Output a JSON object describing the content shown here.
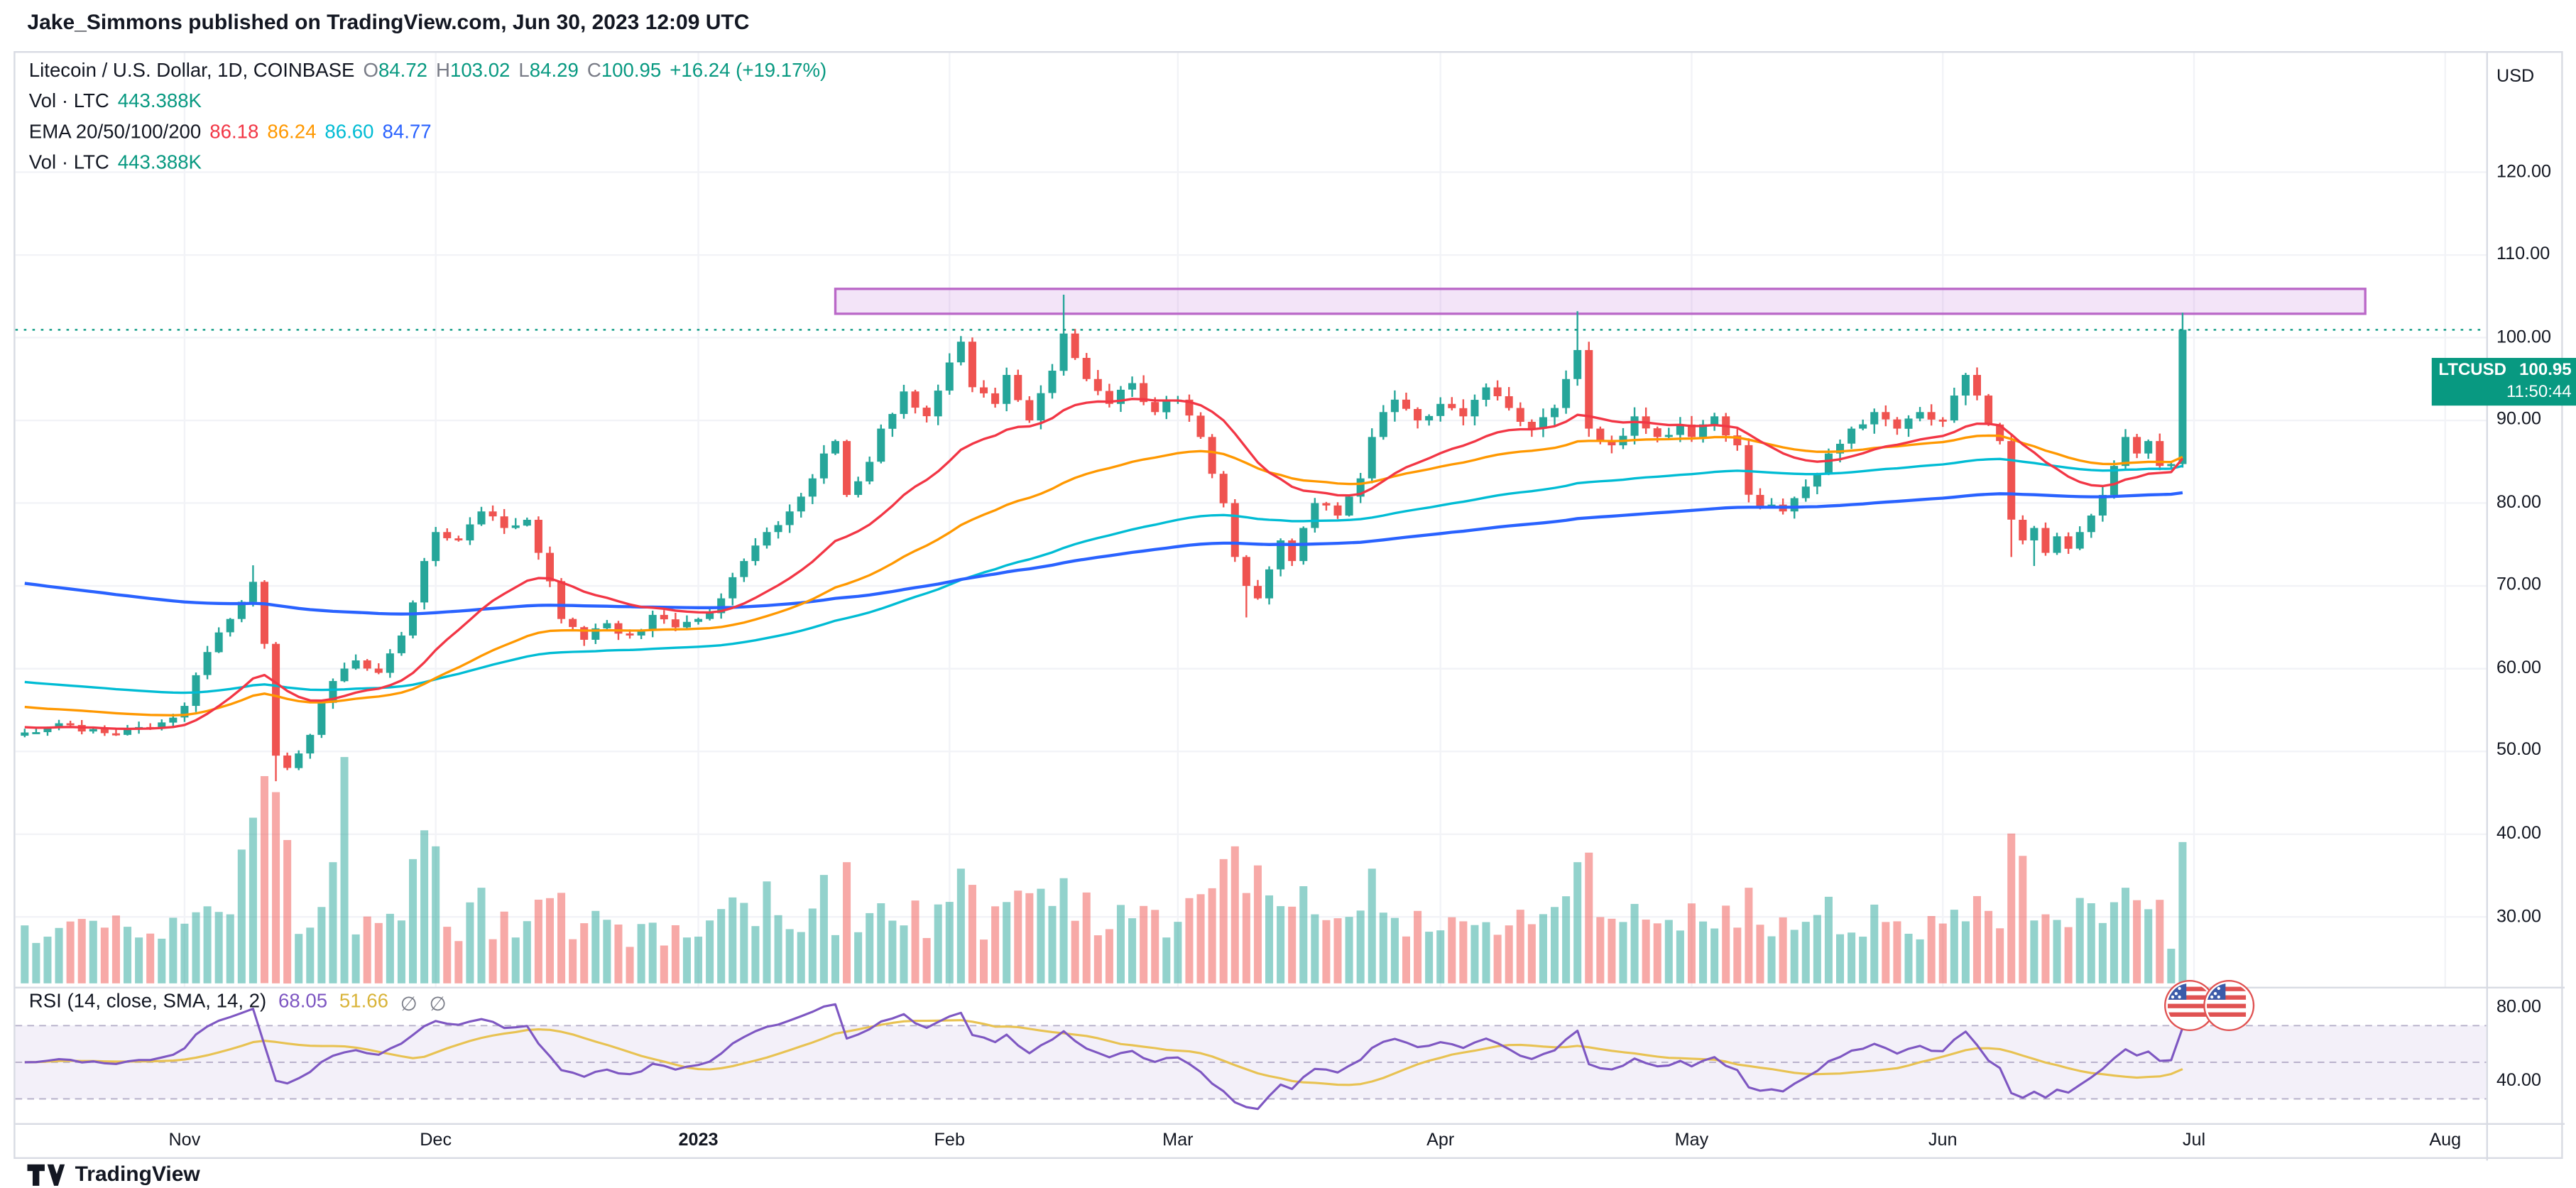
{
  "header": {
    "published_line": "Jake_Simmons published on TradingView.com, Jun 30, 2023 12:09 UTC"
  },
  "legend": {
    "symbol_row": {
      "title": "Litecoin / U.S. Dollar, 1D, COINBASE",
      "o_label": "O",
      "o": "84.72",
      "h_label": "H",
      "h": "103.02",
      "l_label": "L",
      "l": "84.29",
      "c_label": "C",
      "c": "100.95",
      "change": "+16.24 (+19.17%)"
    },
    "vol_row": {
      "label": "Vol · LTC",
      "value": "443.388K"
    },
    "ema_row": {
      "label": "EMA 20/50/100/200",
      "v20": "86.18",
      "v50": "86.24",
      "v100": "86.60",
      "v200": "84.77"
    },
    "vol_row2": {
      "label": "Vol · LTC",
      "value": "443.388K"
    }
  },
  "price_axis": {
    "currency": "USD",
    "labels": [
      "120.00",
      "110.00",
      "100.00",
      "90.00",
      "80.00",
      "70.00",
      "60.00",
      "50.00",
      "40.00",
      "30.00"
    ],
    "price_label": {
      "symbol": "LTCUSD",
      "price": "100.95",
      "countdown": "11:50:44"
    }
  },
  "rsi_panel": {
    "legend_label": "RSI (14, close, SMA, 14, 2)",
    "rsi_value": "68.05",
    "sma_value": "51.66",
    "empty1": "∅",
    "empty2": "∅",
    "axis_labels": [
      "80.00",
      "40.00"
    ]
  },
  "time_axis": {
    "ticks": [
      {
        "label": "Nov",
        "i": 14,
        "bold": false
      },
      {
        "label": "Dec",
        "i": 36,
        "bold": false
      },
      {
        "label": "2023",
        "i": 59,
        "bold": true
      },
      {
        "label": "Feb",
        "i": 81,
        "bold": false
      },
      {
        "label": "Mar",
        "i": 101,
        "bold": false
      },
      {
        "label": "Apr",
        "i": 124,
        "bold": false
      },
      {
        "label": "May",
        "i": 146,
        "bold": false
      },
      {
        "label": "Jun",
        "i": 168,
        "bold": false
      },
      {
        "label": "Jul",
        "i": 190,
        "bold": false
      },
      {
        "label": "Aug",
        "i": 212,
        "bold": false
      }
    ]
  },
  "footer": {
    "logo_text": "TradingView"
  },
  "colors": {
    "up": "#26a69a",
    "down": "#ef5350",
    "vol_up": "rgba(38,166,154,0.5)",
    "vol_down": "rgba(239,83,80,0.5)",
    "ema20": "#f23645",
    "ema50": "#ff9800",
    "ema100": "#00bcd4",
    "ema200": "#2962ff",
    "rsi": "#7e57c2",
    "rsi_sma": "#e8c252",
    "zone_fill": "rgba(187,107,217,0.18)",
    "zone_border": "#ba68c8",
    "price_line": "#089981",
    "grid": "#f2f3f7",
    "level_dash": "#9b93b5"
  },
  "chart_data": {
    "type": "candlestick",
    "symbol": "LTCUSD",
    "exchange": "COINBASE",
    "interval": "1D",
    "title": "Litecoin / U.S. Dollar",
    "ylim": [
      26,
      125
    ],
    "price_gridlines": [
      120,
      110,
      100,
      90,
      80,
      70,
      60,
      50,
      40,
      30
    ],
    "candle_count": 190,
    "price_anchors": [
      [
        0,
        52.3
      ],
      [
        4,
        53.2
      ],
      [
        8,
        52.0
      ],
      [
        12,
        53.5
      ],
      [
        14,
        55.5
      ],
      [
        16,
        62.0
      ],
      [
        18,
        66.0
      ],
      [
        20,
        70.5
      ],
      [
        21,
        63.0
      ],
      [
        22,
        49.5
      ],
      [
        23,
        48.0
      ],
      [
        25,
        52.0
      ],
      [
        27,
        58.5
      ],
      [
        29,
        61.0
      ],
      [
        31,
        59.5
      ],
      [
        33,
        64.0
      ],
      [
        34,
        68.0
      ],
      [
        35,
        73.0
      ],
      [
        36,
        76.5
      ],
      [
        38,
        75.5
      ],
      [
        40,
        79.0
      ],
      [
        42,
        77.0
      ],
      [
        44,
        78.0
      ],
      [
        45,
        74.0
      ],
      [
        47,
        66.0
      ],
      [
        49,
        63.5
      ],
      [
        51,
        65.5
      ],
      [
        53,
        64.0
      ],
      [
        55,
        66.5
      ],
      [
        57,
        65.0
      ],
      [
        59,
        66.0
      ],
      [
        61,
        68.5
      ],
      [
        63,
        73.0
      ],
      [
        65,
        76.5
      ],
      [
        67,
        79.0
      ],
      [
        69,
        83.0
      ],
      [
        70,
        86.0
      ],
      [
        71,
        87.5
      ],
      [
        72,
        81.0
      ],
      [
        74,
        85.0
      ],
      [
        75,
        89.0
      ],
      [
        77,
        93.5
      ],
      [
        79,
        90.5
      ],
      [
        81,
        97.0
      ],
      [
        82,
        99.5
      ],
      [
        83,
        94.0
      ],
      [
        85,
        92.0
      ],
      [
        86,
        95.5
      ],
      [
        88,
        90.0
      ],
      [
        90,
        96.0
      ],
      [
        91,
        100.5
      ],
      [
        93,
        95.0
      ],
      [
        95,
        92.0
      ],
      [
        97,
        94.5
      ],
      [
        99,
        91.0
      ],
      [
        101,
        92.5
      ],
      [
        103,
        88.0
      ],
      [
        105,
        80.0
      ],
      [
        106,
        73.5
      ],
      [
        107,
        70.0
      ],
      [
        108,
        68.5
      ],
      [
        109,
        72.0
      ],
      [
        110,
        75.5
      ],
      [
        111,
        73.0
      ],
      [
        112,
        77.0
      ],
      [
        113,
        80.0
      ],
      [
        115,
        78.5
      ],
      [
        117,
        83.0
      ],
      [
        118,
        88.0
      ],
      [
        119,
        91.0
      ],
      [
        120,
        92.5
      ],
      [
        122,
        90.0
      ],
      [
        124,
        92.0
      ],
      [
        126,
        90.5
      ],
      [
        128,
        94.0
      ],
      [
        130,
        91.5
      ],
      [
        132,
        89.0
      ],
      [
        134,
        91.5
      ],
      [
        135,
        95.0
      ],
      [
        136,
        98.5
      ],
      [
        137,
        89.0
      ],
      [
        139,
        87.0
      ],
      [
        141,
        90.5
      ],
      [
        143,
        88.0
      ],
      [
        145,
        89.5
      ],
      [
        146,
        88.0
      ],
      [
        148,
        90.5
      ],
      [
        150,
        87.0
      ],
      [
        151,
        81.0
      ],
      [
        152,
        79.5
      ],
      [
        154,
        79.0
      ],
      [
        156,
        82.0
      ],
      [
        158,
        86.0
      ],
      [
        160,
        89.0
      ],
      [
        162,
        91.0
      ],
      [
        164,
        89.0
      ],
      [
        166,
        91.0
      ],
      [
        168,
        90.0
      ],
      [
        169,
        93.0
      ],
      [
        170,
        95.5
      ],
      [
        171,
        93.0
      ],
      [
        172,
        89.5
      ],
      [
        173,
        87.5
      ],
      [
        174,
        78.0
      ],
      [
        175,
        75.5
      ],
      [
        176,
        77.0
      ],
      [
        177,
        74.0
      ],
      [
        178,
        76.0
      ],
      [
        179,
        74.5
      ],
      [
        180,
        76.5
      ],
      [
        181,
        78.5
      ],
      [
        182,
        81.0
      ],
      [
        183,
        84.5
      ],
      [
        184,
        88.0
      ],
      [
        185,
        86.0
      ],
      [
        186,
        87.5
      ],
      [
        187,
        84.5
      ],
      [
        188,
        84.72
      ],
      [
        189,
        100.95
      ]
    ],
    "today_ohlc": {
      "o": 84.72,
      "h": 103.02,
      "l": 84.29,
      "c": 100.95,
      "change": 16.24,
      "change_pct": 19.17
    },
    "high_overrides": {
      "20": 72.5,
      "91": 105.2,
      "136": 103.2
    },
    "low_overrides": {
      "22": 46.4,
      "107": 66.2,
      "174": 73.5,
      "176": 72.4
    },
    "volume_today_k": 443.388,
    "volume_spikes_k": {
      "19": 420,
      "20": 520,
      "21": 650,
      "22": 600,
      "23": 450,
      "27": 380,
      "28": 710,
      "34": 390,
      "35": 480,
      "36": 430,
      "40": 300,
      "65": 320,
      "70": 340,
      "82": 360,
      "91": 330,
      "105": 390,
      "106": 430,
      "108": 370,
      "118": 360,
      "136": 380,
      "137": 410,
      "151": 300,
      "174": 470,
      "175": 400,
      "184": 300
    },
    "ema_periods": [
      20,
      50,
      100,
      200
    ],
    "ema_seeds": [
      53.0,
      55.5,
      58.5,
      70.5
    ],
    "ema_last_values": [
      86.18,
      86.24,
      86.6,
      84.77
    ],
    "resistance_zone": {
      "i1": 71,
      "i2": 205,
      "price_top": 105.9,
      "price_bottom": 102.9
    },
    "last_price_line": 100.95,
    "rsi": {
      "length": 14,
      "source": "close",
      "smoothing": "SMA",
      "smoothing_length": 14,
      "last_rsi": 68.05,
      "last_sma": 51.66,
      "band": [
        30,
        70
      ],
      "levels": [
        70,
        50,
        30
      ],
      "axis_range_shown": [
        80,
        40
      ]
    }
  }
}
